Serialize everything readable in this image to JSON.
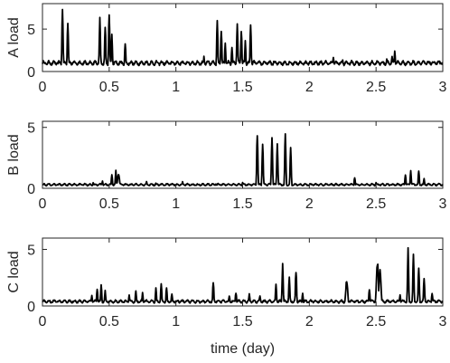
{
  "chart_data": [
    {
      "type": "line",
      "title": "",
      "xlabel": "",
      "ylabel": "A load",
      "xlim": [
        0,
        3
      ],
      "ylim": [
        0,
        8
      ],
      "xticks": [
        0,
        0.5,
        1,
        1.5,
        2,
        2.5,
        3
      ],
      "xtick_labels": [
        "0",
        "0.5",
        "1",
        "1.5",
        "2",
        "2.5",
        "3"
      ],
      "yticks": [
        0,
        5
      ],
      "ytick_labels": [
        "0",
        "5"
      ],
      "series": [
        {
          "baseline": [
            0.7,
            1.3
          ],
          "peaks": [
            [
              0.15,
              7.9
            ],
            [
              0.19,
              6.5
            ],
            [
              0.43,
              6.7
            ],
            [
              0.47,
              6.0
            ],
            [
              0.5,
              7.3
            ],
            [
              0.52,
              4.8
            ],
            [
              0.62,
              3.8
            ],
            [
              1.21,
              1.8
            ],
            [
              1.31,
              6.5
            ],
            [
              1.34,
              5.5
            ],
            [
              1.37,
              3.5
            ],
            [
              1.42,
              3.2
            ],
            [
              1.46,
              6.3
            ],
            [
              1.49,
              5.3
            ],
            [
              1.52,
              3.7
            ],
            [
              1.56,
              5.8
            ],
            [
              2.18,
              1.8
            ],
            [
              2.25,
              1.4
            ],
            [
              2.58,
              1.5
            ],
            [
              2.62,
              2.0
            ],
            [
              2.64,
              2.6
            ],
            [
              2.95,
              1.0
            ]
          ]
        }
      ]
    },
    {
      "type": "line",
      "title": "",
      "xlabel": "",
      "ylabel": "B load",
      "xlim": [
        0,
        3
      ],
      "ylim": [
        0,
        5.5
      ],
      "xticks": [
        0,
        0.5,
        1,
        1.5,
        2,
        2.5,
        3
      ],
      "xtick_labels": [
        "0",
        "0.5",
        "1",
        "1.5",
        "2",
        "2.5",
        "3"
      ],
      "yticks": [
        0,
        5
      ],
      "ytick_labels": [
        "0",
        "5"
      ],
      "series": [
        {
          "baseline": [
            0.2,
            0.4
          ],
          "peaks": [
            [
              0.38,
              0.5
            ],
            [
              0.45,
              0.6
            ],
            [
              0.52,
              1.2
            ],
            [
              0.55,
              1.5
            ],
            [
              0.57,
              1.3
            ],
            [
              0.78,
              0.6
            ],
            [
              0.85,
              0.5
            ],
            [
              1.05,
              0.6
            ],
            [
              1.3,
              0.4
            ],
            [
              1.5,
              0.5
            ],
            [
              1.61,
              4.8
            ],
            [
              1.65,
              4.0
            ],
            [
              1.72,
              4.6
            ],
            [
              1.76,
              3.8
            ],
            [
              1.82,
              4.7
            ],
            [
              1.86,
              3.5
            ],
            [
              2.34,
              1.0
            ],
            [
              2.5,
              0.5
            ],
            [
              2.72,
              1.2
            ],
            [
              2.76,
              1.5
            ],
            [
              2.82,
              1.6
            ],
            [
              2.86,
              0.8
            ]
          ]
        }
      ]
    },
    {
      "type": "line",
      "title": "",
      "xlabel": "time (day)",
      "ylabel": "C load",
      "xlim": [
        0,
        3
      ],
      "ylim": [
        0,
        6
      ],
      "xticks": [
        0,
        0.5,
        1,
        1.5,
        2,
        2.5,
        3
      ],
      "xtick_labels": [
        "0",
        "0.5",
        "1",
        "1.5",
        "2",
        "2.5",
        "3"
      ],
      "yticks": [
        0,
        5
      ],
      "ytick_labels": [
        "0",
        "5"
      ],
      "series": [
        {
          "baseline": [
            0.25,
            0.55
          ],
          "peaks": [
            [
              0.37,
              1.0
            ],
            [
              0.41,
              1.6
            ],
            [
              0.44,
              2.0
            ],
            [
              0.47,
              1.4
            ],
            [
              0.65,
              1.0
            ],
            [
              0.7,
              1.4
            ],
            [
              0.75,
              1.2
            ],
            [
              0.85,
              1.6
            ],
            [
              0.89,
              2.2
            ],
            [
              0.93,
              1.8
            ],
            [
              0.97,
              1.2
            ],
            [
              1.28,
              2.3
            ],
            [
              1.4,
              1.0
            ],
            [
              1.45,
              1.3
            ],
            [
              1.55,
              1.1
            ],
            [
              1.63,
              1.0
            ],
            [
              1.75,
              2.0
            ],
            [
              1.8,
              3.8
            ],
            [
              1.85,
              2.7
            ],
            [
              1.9,
              3.4
            ],
            [
              1.95,
              1.2
            ],
            [
              2.28,
              2.5
            ],
            [
              2.45,
              1.6
            ],
            [
              2.51,
              4.2
            ],
            [
              2.53,
              3.5
            ],
            [
              2.68,
              1.0
            ],
            [
              2.74,
              5.3
            ],
            [
              2.78,
              4.8
            ],
            [
              2.82,
              3.8
            ],
            [
              2.86,
              2.8
            ],
            [
              2.92,
              1.2
            ]
          ]
        }
      ]
    }
  ]
}
